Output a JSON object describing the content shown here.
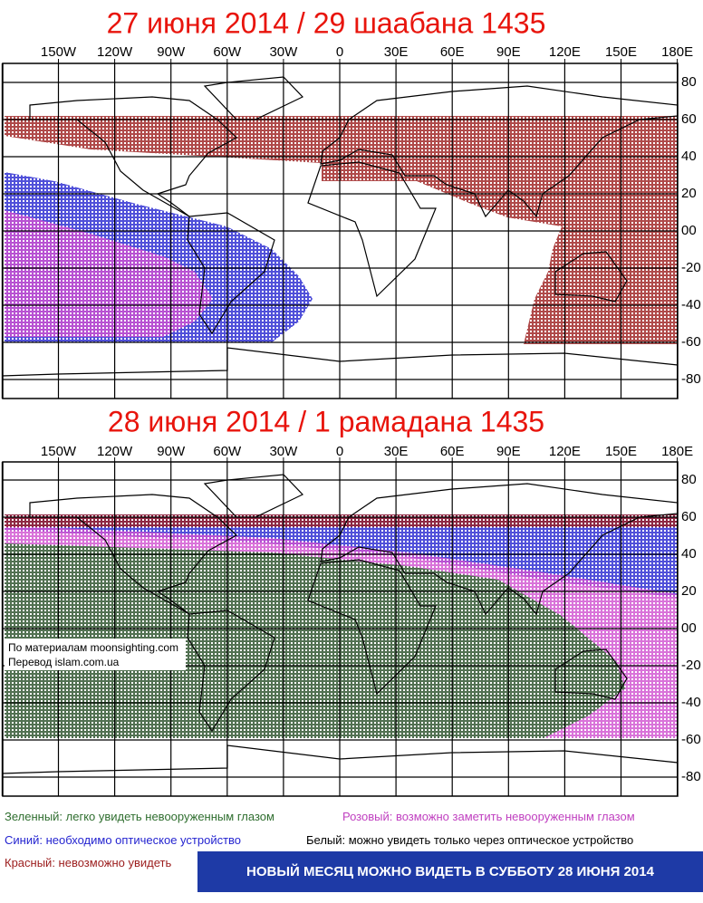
{
  "panels": [
    {
      "title": "27 июня 2014 / 29 шаабана 1435"
    },
    {
      "title": "28 июня 2014 / 1 рамадана 1435"
    }
  ],
  "lon_labels": [
    "150W",
    "120W",
    "90W",
    "60W",
    "30W",
    "0",
    "30E",
    "60E",
    "90E",
    "120E",
    "150E",
    "180E"
  ],
  "lat_labels": [
    "80",
    "60",
    "40",
    "20",
    "00",
    "-20",
    "-40",
    "-60",
    "-80"
  ],
  "credits": [
    "По материалам moonsighting.com",
    "Перевод  islam.com.ua"
  ],
  "legend": {
    "green": "Зеленный: легко увидеть невооруженным глазом",
    "pink": "Розовый: возможно заметить невооруженным глазом",
    "blue": "Синий: необходимо оптическое устройство",
    "white": "Белый: можно увидеть только через оптическое устройство",
    "red": "Красный: невозможно увидеть"
  },
  "banner": "НОВЫЙ МЕСЯЦ МОЖНО ВИДЕТЬ В СУББОТУ 28 ИЮНЯ 2014"
}
